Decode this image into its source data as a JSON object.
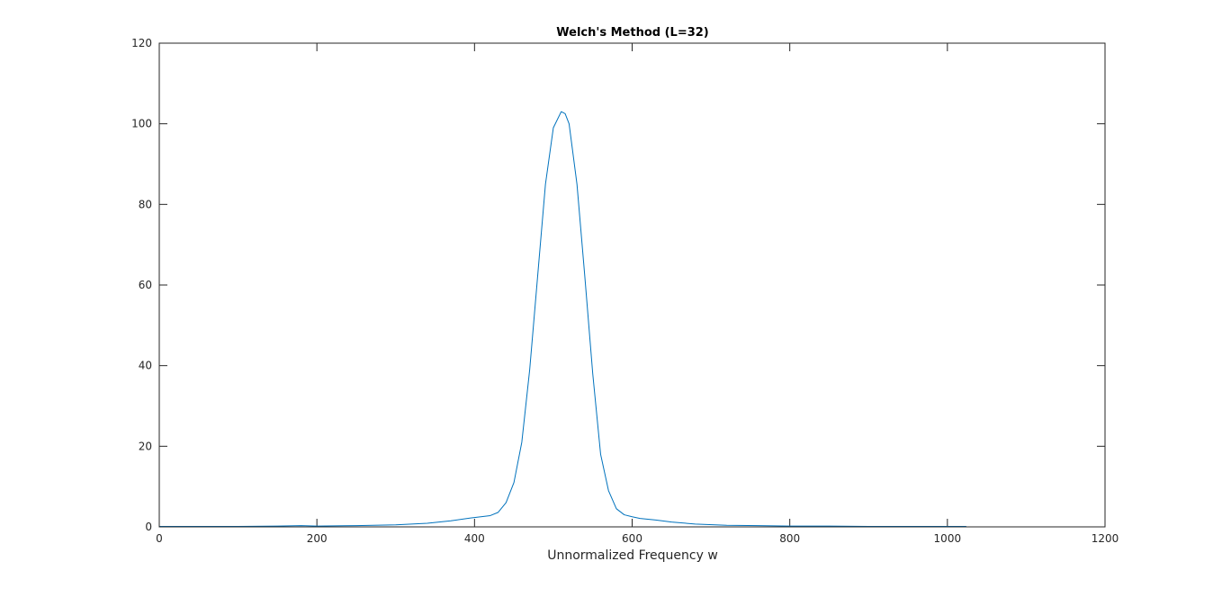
{
  "chart_data": {
    "type": "line",
    "title": "Welch's Method (L=32)",
    "xlabel": "Unnormalized Frequency w",
    "ylabel": "",
    "xlim": [
      0,
      1200
    ],
    "ylim": [
      0,
      120
    ],
    "xticks": [
      0,
      200,
      400,
      600,
      800,
      1000,
      1200
    ],
    "xtick_labels": [
      "0",
      "200",
      "400",
      "600",
      "800",
      "1000",
      "1200"
    ],
    "yticks": [
      0,
      20,
      40,
      60,
      80,
      100,
      120
    ],
    "ytick_labels": [
      "0",
      "20",
      "40",
      "60",
      "80",
      "100",
      "120"
    ],
    "grid": false,
    "box": true,
    "series": [
      {
        "color": "#0072bd",
        "x": [
          0,
          50,
          100,
          150,
          180,
          200,
          250,
          300,
          340,
          370,
          395,
          420,
          430,
          440,
          450,
          460,
          470,
          480,
          490,
          500,
          510,
          515,
          520,
          530,
          540,
          550,
          560,
          570,
          580,
          590,
          600,
          610,
          630,
          650,
          680,
          720,
          760,
          800,
          850,
          900,
          950,
          1000,
          1024
        ],
        "y": [
          0.1,
          0.1,
          0.1,
          0.2,
          0.3,
          0.2,
          0.3,
          0.5,
          0.9,
          1.5,
          2.2,
          2.8,
          3.6,
          6,
          11,
          21,
          39,
          62,
          85,
          99,
          103,
          102.5,
          100,
          85,
          62,
          38,
          18,
          9,
          4.5,
          3,
          2.5,
          2.1,
          1.7,
          1.2,
          0.7,
          0.4,
          0.3,
          0.2,
          0.2,
          0.1,
          0.1,
          0.1,
          0.1
        ]
      }
    ]
  }
}
